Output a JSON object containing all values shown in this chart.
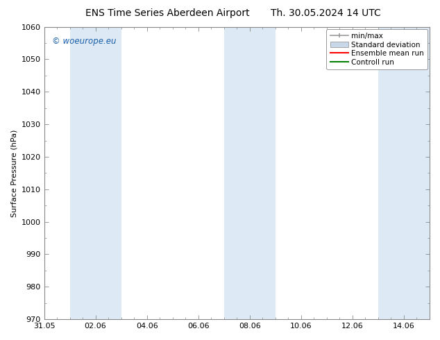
{
  "title_left": "ENS Time Series Aberdeen Airport",
  "title_right": "Th. 30.05.2024 14 UTC",
  "ylabel": "Surface Pressure (hPa)",
  "ylim": [
    970,
    1060
  ],
  "yticks": [
    970,
    980,
    990,
    1000,
    1010,
    1020,
    1030,
    1040,
    1050,
    1060
  ],
  "xtick_labels": [
    "31.05",
    "02.06",
    "04.06",
    "06.06",
    "08.06",
    "10.06",
    "12.06",
    "14.06"
  ],
  "xtick_positions": [
    0,
    2,
    4,
    6,
    8,
    10,
    12,
    14
  ],
  "xlim": [
    0,
    15
  ],
  "shaded_bands": [
    {
      "x_start": 1,
      "x_end": 3,
      "color": "#ddeaf5"
    },
    {
      "x_start": 7,
      "x_end": 9,
      "color": "#ddeaf5"
    },
    {
      "x_start": 13,
      "x_end": 15,
      "color": "#ddeaf5"
    }
  ],
  "watermark_text": "© woeurope.eu",
  "watermark_color": "#1a5faa",
  "legend_items": [
    {
      "label": "min/max",
      "type": "minmax"
    },
    {
      "label": "Standard deviation",
      "type": "stddev"
    },
    {
      "label": "Ensemble mean run",
      "type": "line",
      "color": "red"
    },
    {
      "label": "Controll run",
      "type": "line",
      "color": "green"
    }
  ],
  "bg_color": "#ffffff",
  "plot_bg_color": "#ffffff",
  "spine_color": "#888888",
  "title_fontsize": 10,
  "axis_label_fontsize": 8,
  "tick_fontsize": 8,
  "legend_fontsize": 7.5,
  "minmax_color": "#999999",
  "stddev_color": "#c8d8e8"
}
